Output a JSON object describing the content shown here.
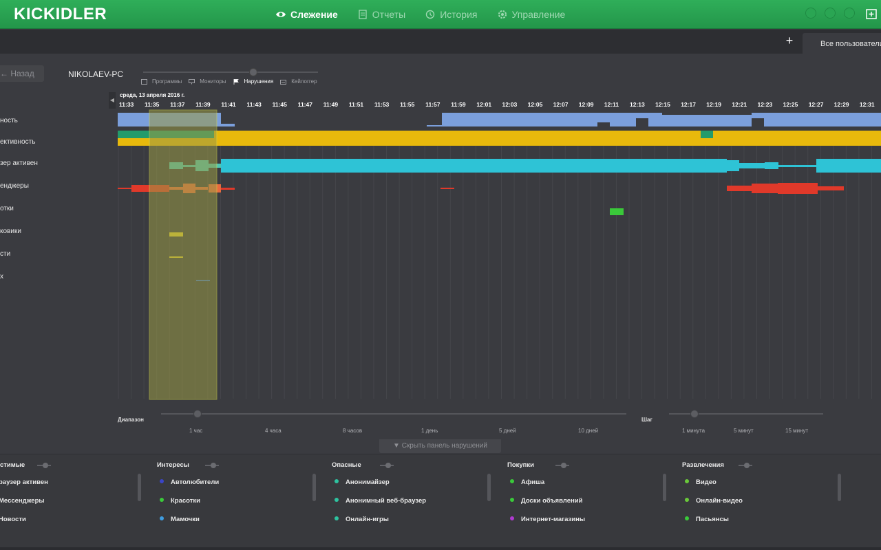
{
  "header": {
    "logo": "KICKIDLER",
    "nav": [
      {
        "label": "Слежение",
        "icon": "eye-icon",
        "active": true
      },
      {
        "label": "Отчеты",
        "icon": "document-icon",
        "active": false
      },
      {
        "label": "История",
        "icon": "history-icon",
        "active": false
      },
      {
        "label": "Управление",
        "icon": "gear-icon",
        "active": false
      }
    ]
  },
  "tabs": {
    "add_label": "+",
    "user_tab": "Все пользователи"
  },
  "controls": {
    "back_label": "← Назад",
    "pc_name": "NIKOLAEV-PC",
    "modes": [
      {
        "label": "Программы",
        "icon": "window-icon",
        "active": false
      },
      {
        "label": "Мониторы",
        "icon": "monitor-icon",
        "active": false
      },
      {
        "label": "Нарушения",
        "icon": "flag-icon",
        "active": true
      },
      {
        "label": "Кейлоггер",
        "icon": "keyboard-icon",
        "active": false
      }
    ]
  },
  "timeline": {
    "date": "среда, 13 апреля 2016 г.",
    "times": [
      "11:33",
      "11:35",
      "11:37",
      "11:39",
      "11:41",
      "11:43",
      "11:45",
      "11:47",
      "11:49",
      "11:51",
      "11:53",
      "11:55",
      "11:57",
      "11:59",
      "12:01",
      "12:03",
      "12:05",
      "12:07",
      "12:09",
      "12:11",
      "12:13",
      "12:15",
      "12:17",
      "12:19",
      "12:21",
      "12:23",
      "12:25",
      "12:27",
      "12:29",
      "12:31"
    ],
    "rows": [
      "ность",
      "ективность",
      "зер активен",
      "енджеры",
      "отки",
      "ковики",
      "сти",
      "х"
    ],
    "colors": {
      "activity": "#7b9fdc",
      "productivity": "#e8b90c",
      "productivity_dark": "#249b6b",
      "browser": "#2ec3d6",
      "browser_light": "#4ec5b3",
      "messengers": "#e0392a",
      "messengers_light": "#e76a3e",
      "green": "#3ac93a",
      "yellow": "#e4d02c",
      "blue": "#3f73c8",
      "highlight": "#9a9a47",
      "highlight_border": "#d6d64a"
    }
  },
  "range": {
    "label": "Диапазон",
    "options": [
      "1 час",
      "4 часа",
      "8 часов",
      "1 день",
      "5 дней",
      "10 дней"
    ],
    "step_label": "Шаг",
    "step_options": [
      "1 минута",
      "5 минут",
      "15 минут"
    ]
  },
  "hide_panel_label": "Скрыть панель нарушений",
  "categories": [
    {
      "title": "стимые",
      "items": [
        {
          "label": "раузер активен",
          "color": ""
        },
        {
          "label": "Мессенджеры",
          "color": ""
        },
        {
          "label": "Новости",
          "color": ""
        }
      ]
    },
    {
      "title": "Интересы",
      "items": [
        {
          "label": "Автолюбители",
          "color": "#3a45c8"
        },
        {
          "label": "Красотки",
          "color": "#3ac93a"
        },
        {
          "label": "Мамочки",
          "color": "#3f9de0"
        }
      ]
    },
    {
      "title": "Опасные",
      "items": [
        {
          "label": "Анонимайзер",
          "color": "#2ec3a0"
        },
        {
          "label": "Анонимный веб-браузер",
          "color": "#2ec3a0"
        },
        {
          "label": "Онлайн-игры",
          "color": "#2ec3a0"
        }
      ]
    },
    {
      "title": "Покупки",
      "items": [
        {
          "label": "Афиша",
          "color": "#3ac93a"
        },
        {
          "label": "Доски объявлений",
          "color": "#3ac93a"
        },
        {
          "label": "Интернет-магазины",
          "color": "#b03ad0"
        }
      ]
    },
    {
      "title": "Развлечения",
      "items": [
        {
          "label": "Видео",
          "color": "#6ac93a"
        },
        {
          "label": "Онлайн-видео",
          "color": "#6ac93a"
        },
        {
          "label": "Пасьянсы",
          "color": "#3ac93a"
        }
      ]
    }
  ]
}
